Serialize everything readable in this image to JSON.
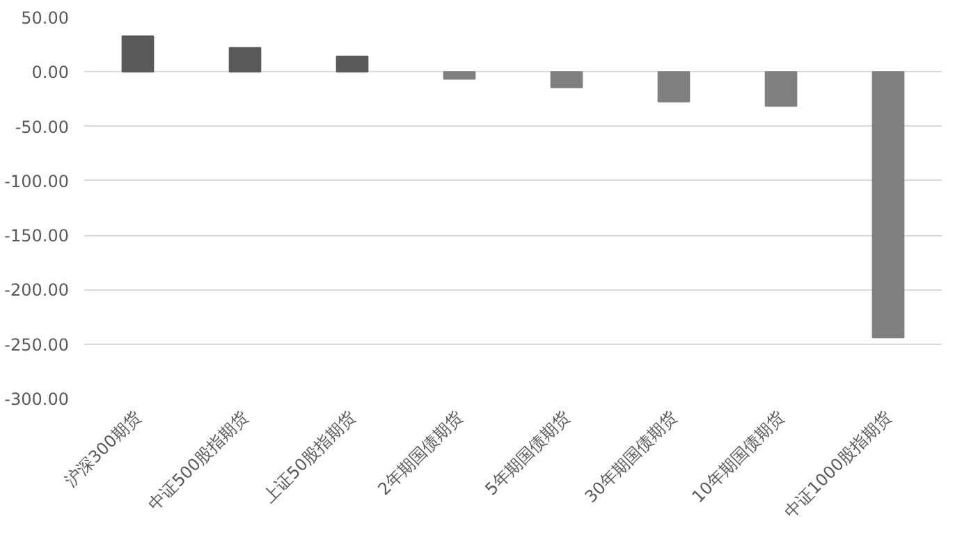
{
  "chart_data": {
    "type": "bar",
    "categories": [
      "沪深300期货",
      "中证500股指期货",
      "上证50股指期货",
      "2年期国债期货",
      "5年期国债期货",
      "30年期国债期货",
      "10年期国债期货",
      "中证1000股指期货"
    ],
    "values": [
      32.7,
      22,
      14.3,
      -6.5,
      -14.3,
      -27.4,
      -31.5,
      -244
    ],
    "colors": [
      "#595959",
      "#595959",
      "#595959",
      "#7f7f7f",
      "#7f7f7f",
      "#7f7f7f",
      "#7f7f7f",
      "#7f7f7f"
    ],
    "ylim": [
      -300,
      50
    ],
    "yticks": [
      {
        "value": 50,
        "label": "50.00"
      },
      {
        "value": 0,
        "label": "0.00"
      },
      {
        "value": -50,
        "label": "-50.00"
      },
      {
        "value": -100,
        "label": "-100.00"
      },
      {
        "value": -150,
        "label": "-150.00"
      },
      {
        "value": -200,
        "label": "-200.00"
      },
      {
        "value": -250,
        "label": "-250.00"
      },
      {
        "value": -300,
        "label": "-300.00"
      }
    ],
    "grid": "y"
  }
}
